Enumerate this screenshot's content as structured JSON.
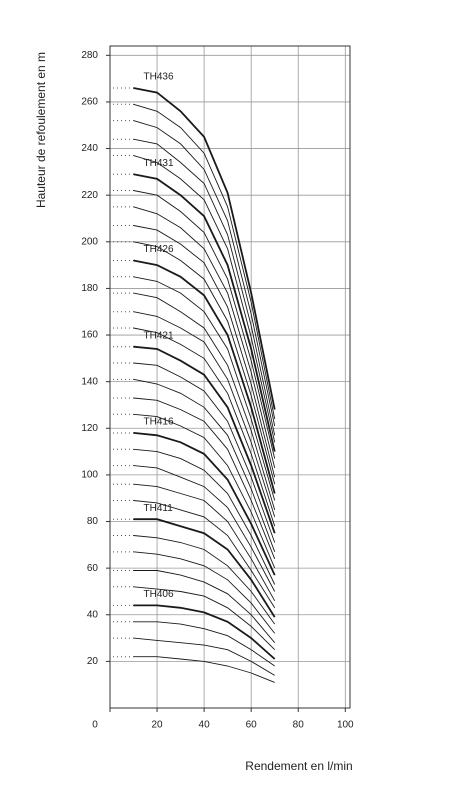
{
  "chart_data": {
    "type": "line",
    "xlabel": "Rendement en l/min",
    "ylabel": "Hauteur de refoulement en m",
    "x": [
      10,
      20,
      30,
      40,
      50,
      60,
      70
    ],
    "xlim": [
      0,
      102
    ],
    "xticks": [
      0,
      20,
      40,
      60,
      80,
      100
    ],
    "ylim": [
      0,
      284
    ],
    "yticks": [
      20,
      40,
      60,
      80,
      100,
      120,
      140,
      160,
      180,
      200,
      220,
      240,
      260,
      280
    ],
    "grid": true,
    "color": "#1a1a1a",
    "series": [
      {
        "values": [
          22,
          22,
          21,
          20,
          18,
          15,
          11
        ]
      },
      {
        "values": [
          30,
          29,
          28,
          27,
          25,
          20,
          14
        ]
      },
      {
        "values": [
          37,
          37,
          36,
          34,
          31,
          25,
          18
        ]
      },
      {
        "name": "TH406",
        "values": [
          44,
          44,
          43,
          41,
          37,
          30,
          21
        ]
      },
      {
        "values": [
          52,
          51,
          50,
          48,
          43,
          35,
          25
        ]
      },
      {
        "values": [
          59,
          59,
          57,
          54,
          49,
          40,
          28
        ]
      },
      {
        "values": [
          67,
          66,
          64,
          61,
          55,
          45,
          32
        ]
      },
      {
        "values": [
          74,
          73,
          71,
          68,
          61,
          50,
          36
        ]
      },
      {
        "name": "TH411",
        "values": [
          81,
          81,
          78,
          75,
          68,
          55,
          39
        ]
      },
      {
        "values": [
          89,
          88,
          85,
          82,
          74,
          59,
          43
        ]
      },
      {
        "values": [
          96,
          95,
          92,
          89,
          80,
          64,
          46
        ]
      },
      {
        "values": [
          104,
          103,
          99,
          95,
          86,
          69,
          50
        ]
      },
      {
        "values": [
          111,
          110,
          107,
          102,
          92,
          74,
          53
        ]
      },
      {
        "name": "TH416",
        "values": [
          118,
          117,
          114,
          109,
          98,
          79,
          57
        ]
      },
      {
        "values": [
          126,
          125,
          121,
          116,
          104,
          84,
          60
        ]
      },
      {
        "values": [
          133,
          132,
          128,
          123,
          111,
          89,
          64
        ]
      },
      {
        "values": [
          141,
          139,
          135,
          129,
          117,
          94,
          67
        ]
      },
      {
        "values": [
          148,
          147,
          142,
          136,
          123,
          99,
          71
        ]
      },
      {
        "name": "TH421",
        "values": [
          155,
          154,
          149,
          143,
          129,
          104,
          75
        ]
      },
      {
        "values": [
          163,
          161,
          156,
          150,
          135,
          109,
          78
        ]
      },
      {
        "values": [
          170,
          168,
          163,
          157,
          141,
          114,
          82
        ]
      },
      {
        "values": [
          178,
          176,
          170,
          163,
          147,
          119,
          85
        ]
      },
      {
        "values": [
          185,
          183,
          178,
          170,
          154,
          124,
          89
        ]
      },
      {
        "name": "TH426",
        "values": [
          192,
          190,
          185,
          177,
          160,
          129,
          92
        ]
      },
      {
        "values": [
          200,
          198,
          192,
          184,
          166,
          134,
          96
        ]
      },
      {
        "values": [
          207,
          205,
          199,
          191,
          172,
          139,
          99
        ]
      },
      {
        "values": [
          215,
          212,
          206,
          197,
          178,
          144,
          103
        ]
      },
      {
        "values": [
          222,
          220,
          213,
          204,
          184,
          149,
          107
        ]
      },
      {
        "name": "TH431",
        "values": [
          229,
          227,
          220,
          211,
          190,
          154,
          110
        ]
      },
      {
        "values": [
          237,
          234,
          227,
          218,
          197,
          159,
          114
        ]
      },
      {
        "values": [
          244,
          242,
          234,
          225,
          203,
          164,
          117
        ]
      },
      {
        "values": [
          252,
          249,
          242,
          231,
          209,
          169,
          121
        ]
      },
      {
        "values": [
          259,
          256,
          249,
          238,
          215,
          174,
          124
        ]
      },
      {
        "name": "TH436",
        "values": [
          266,
          264,
          256,
          245,
          221,
          178,
          128
        ]
      }
    ]
  }
}
